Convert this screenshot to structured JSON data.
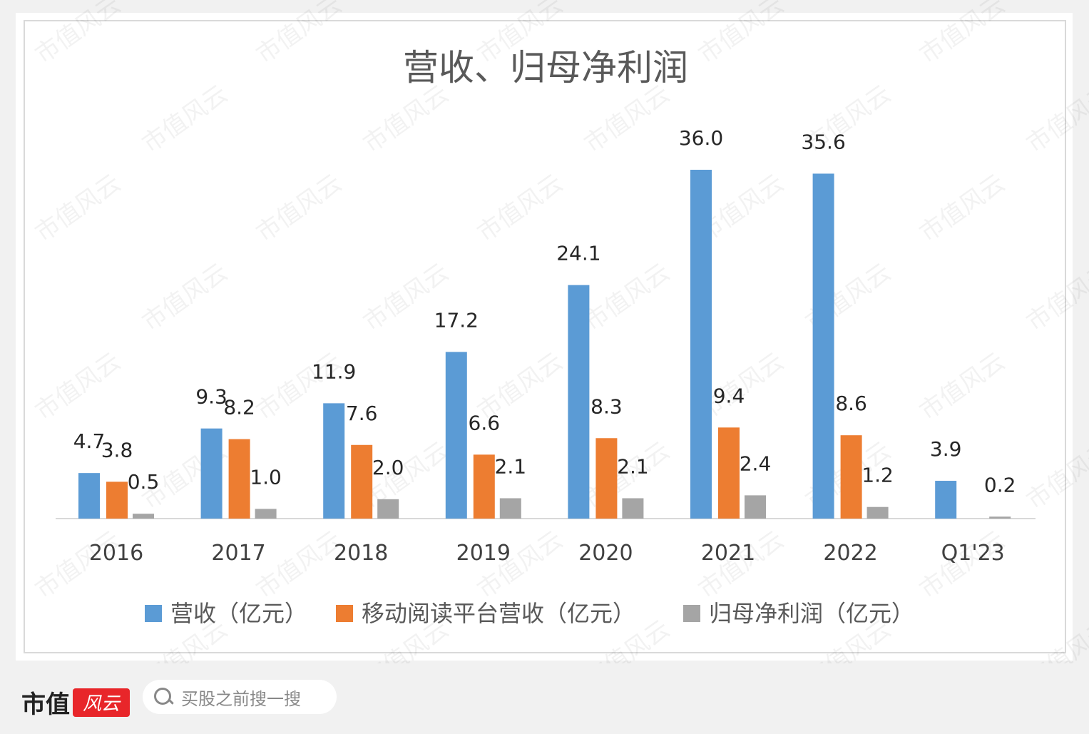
{
  "chart_data": {
    "type": "bar",
    "title": "营收、归母净利润",
    "categories": [
      "2016",
      "2017",
      "2018",
      "2019",
      "2020",
      "2021",
      "2022",
      "Q1'23"
    ],
    "series": [
      {
        "name": "营收（亿元）",
        "color": "#5b9bd5",
        "values": [
          4.7,
          9.3,
          11.9,
          17.2,
          24.1,
          36.0,
          35.6,
          3.9
        ]
      },
      {
        "name": "移动阅读平台营收（亿元）",
        "color": "#ed7d31",
        "values": [
          3.8,
          8.2,
          7.6,
          6.6,
          8.3,
          9.4,
          8.6,
          null
        ]
      },
      {
        "name": "归母净利润（亿元）",
        "color": "#a5a5a5",
        "values": [
          0.5,
          1.0,
          2.0,
          2.1,
          2.1,
          2.4,
          1.2,
          0.2
        ]
      }
    ],
    "ylim": [
      0,
      36
    ],
    "grid": false,
    "legend": "bottom",
    "data_labels": true
  },
  "footer": {
    "logo_text": "市值",
    "logo_script": "风云",
    "search_placeholder": "买股之前搜一搜"
  },
  "watermark": "市值风云"
}
